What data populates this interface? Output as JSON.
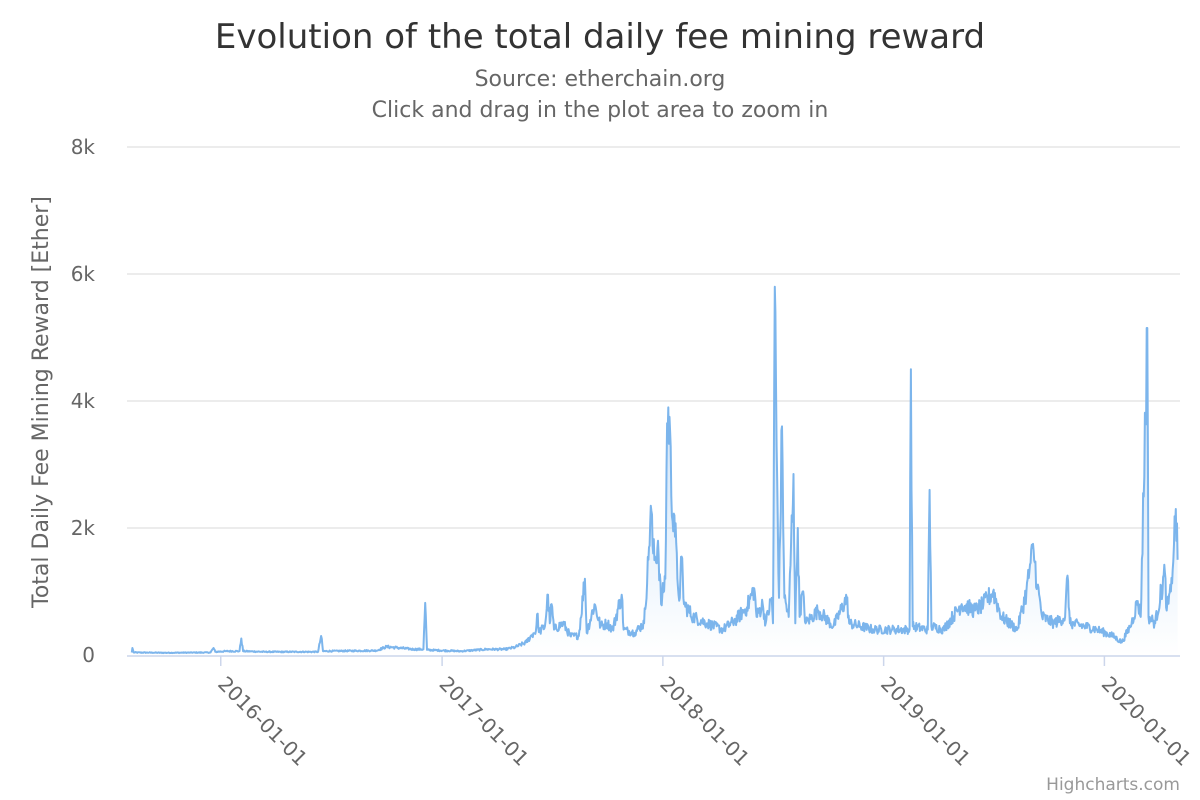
{
  "chart_data": {
    "type": "area",
    "title": "Evolution of the total daily fee mining reward",
    "subtitle": "Source: etherchain.org",
    "subtitle2": "Click and drag in the plot area to zoom in",
    "ylabel": "Total Daily Fee Mining Reward [Ether]",
    "xlabel": "",
    "x_type": "date",
    "xlim": [
      "2015-07-30",
      "2020-05-05"
    ],
    "ylim": [
      0,
      8000
    ],
    "yticks": [
      0,
      2000,
      4000,
      6000,
      8000
    ],
    "ytick_labels": [
      "0",
      "2k",
      "4k",
      "6k",
      "8k"
    ],
    "xticks": [
      "2016-01-01",
      "2017-01-01",
      "2018-01-01",
      "2019-01-01",
      "2020-01-01"
    ],
    "grid": true,
    "legend": "none",
    "series": [
      {
        "color": "#7cb5ec",
        "points": [
          [
            "2015-08-07",
            40
          ],
          [
            "2015-08-08",
            110
          ],
          [
            "2015-08-10",
            40
          ],
          [
            "2015-10-01",
            35
          ],
          [
            "2015-12-15",
            40
          ],
          [
            "2015-12-20",
            110
          ],
          [
            "2015-12-23",
            50
          ],
          [
            "2016-01-10",
            60
          ],
          [
            "2016-02-01",
            60
          ],
          [
            "2016-02-04",
            260
          ],
          [
            "2016-02-07",
            60
          ],
          [
            "2016-03-15",
            50
          ],
          [
            "2016-06-10",
            50
          ],
          [
            "2016-06-15",
            300
          ],
          [
            "2016-06-18",
            60
          ],
          [
            "2016-09-15",
            70
          ],
          [
            "2016-10-01",
            130
          ],
          [
            "2016-11-15",
            90
          ],
          [
            "2016-12-01",
            90
          ],
          [
            "2016-12-04",
            820
          ],
          [
            "2016-12-07",
            80
          ],
          [
            "2017-02-01",
            60
          ],
          [
            "2017-03-15",
            90
          ],
          [
            "2017-04-15",
            90
          ],
          [
            "2017-05-01",
            120
          ],
          [
            "2017-05-20",
            200
          ],
          [
            "2017-05-30",
            320
          ],
          [
            "2017-06-05",
            380
          ],
          [
            "2017-06-08",
            650
          ],
          [
            "2017-06-10",
            360
          ],
          [
            "2017-06-20",
            450
          ],
          [
            "2017-06-25",
            950
          ],
          [
            "2017-06-28",
            500
          ],
          [
            "2017-07-01",
            800
          ],
          [
            "2017-07-05",
            400
          ],
          [
            "2017-07-20",
            500
          ],
          [
            "2017-08-01",
            300
          ],
          [
            "2017-08-15",
            300
          ],
          [
            "2017-08-25",
            1200
          ],
          [
            "2017-08-28",
            350
          ],
          [
            "2017-09-10",
            800
          ],
          [
            "2017-09-20",
            450
          ],
          [
            "2017-10-01",
            500
          ],
          [
            "2017-10-10",
            400
          ],
          [
            "2017-10-25",
            950
          ],
          [
            "2017-10-28",
            400
          ],
          [
            "2017-11-15",
            350
          ],
          [
            "2017-12-01",
            500
          ],
          [
            "2017-12-08",
            1500
          ],
          [
            "2017-12-12",
            2350
          ],
          [
            "2017-12-16",
            1600
          ],
          [
            "2017-12-20",
            1500
          ],
          [
            "2017-12-24",
            1800
          ],
          [
            "2017-12-29",
            800
          ],
          [
            "2018-01-05",
            1200
          ],
          [
            "2018-01-08",
            3650
          ],
          [
            "2018-01-12",
            3750
          ],
          [
            "2018-01-15",
            2500
          ],
          [
            "2018-01-20",
            2200
          ],
          [
            "2018-01-25",
            1200
          ],
          [
            "2018-01-29",
            900
          ],
          [
            "2018-02-01",
            1550
          ],
          [
            "2018-02-05",
            800
          ],
          [
            "2018-02-20",
            600
          ],
          [
            "2018-03-15",
            500
          ],
          [
            "2018-04-10",
            400
          ],
          [
            "2018-05-01",
            550
          ],
          [
            "2018-05-20",
            750
          ],
          [
            "2018-06-01",
            1050
          ],
          [
            "2018-06-05",
            600
          ],
          [
            "2018-06-15",
            800
          ],
          [
            "2018-06-20",
            500
          ],
          [
            "2018-06-30",
            900
          ],
          [
            "2018-07-02",
            500
          ],
          [
            "2018-07-05",
            5800
          ],
          [
            "2018-07-08",
            3300
          ],
          [
            "2018-07-12",
            900
          ],
          [
            "2018-07-17",
            3600
          ],
          [
            "2018-07-21",
            900
          ],
          [
            "2018-07-28",
            600
          ],
          [
            "2018-08-05",
            2850
          ],
          [
            "2018-08-08",
            500
          ],
          [
            "2018-08-12",
            2000
          ],
          [
            "2018-08-15",
            600
          ],
          [
            "2018-08-20",
            1000
          ],
          [
            "2018-08-25",
            500
          ],
          [
            "2018-09-15",
            700
          ],
          [
            "2018-10-10",
            450
          ],
          [
            "2018-11-01",
            900
          ],
          [
            "2018-11-05",
            500
          ],
          [
            "2018-12-15",
            400
          ],
          [
            "2019-01-15",
            400
          ],
          [
            "2019-02-13",
            400
          ],
          [
            "2019-02-15",
            4500
          ],
          [
            "2019-02-18",
            450
          ],
          [
            "2019-03-15",
            400
          ],
          [
            "2019-03-18",
            2600
          ],
          [
            "2019-03-21",
            450
          ],
          [
            "2019-04-10",
            400
          ],
          [
            "2019-05-10",
            800
          ],
          [
            "2019-06-01",
            700
          ],
          [
            "2019-06-15",
            800
          ],
          [
            "2019-07-01",
            1000
          ],
          [
            "2019-07-15",
            600
          ],
          [
            "2019-08-10",
            400
          ],
          [
            "2019-08-25",
            1000
          ],
          [
            "2019-09-01",
            1450
          ],
          [
            "2019-09-06",
            1650
          ],
          [
            "2019-09-12",
            1100
          ],
          [
            "2019-09-20",
            600
          ],
          [
            "2019-10-10",
            500
          ],
          [
            "2019-10-28",
            600
          ],
          [
            "2019-11-01",
            1250
          ],
          [
            "2019-11-05",
            500
          ],
          [
            "2019-12-01",
            450
          ],
          [
            "2019-12-20",
            400
          ],
          [
            "2020-01-15",
            300
          ],
          [
            "2020-01-30",
            200
          ],
          [
            "2020-02-15",
            500
          ],
          [
            "2020-02-25",
            850
          ],
          [
            "2020-03-01",
            600
          ],
          [
            "2020-03-12",
            5150
          ],
          [
            "2020-03-14",
            600
          ],
          [
            "2020-03-25",
            500
          ],
          [
            "2020-04-10",
            1300
          ],
          [
            "2020-04-13",
            700
          ],
          [
            "2020-04-20",
            1000
          ],
          [
            "2020-04-25",
            1750
          ],
          [
            "2020-04-28",
            2300
          ],
          [
            "2020-05-01",
            1500
          ]
        ]
      }
    ]
  },
  "credits": "Highcharts.com"
}
